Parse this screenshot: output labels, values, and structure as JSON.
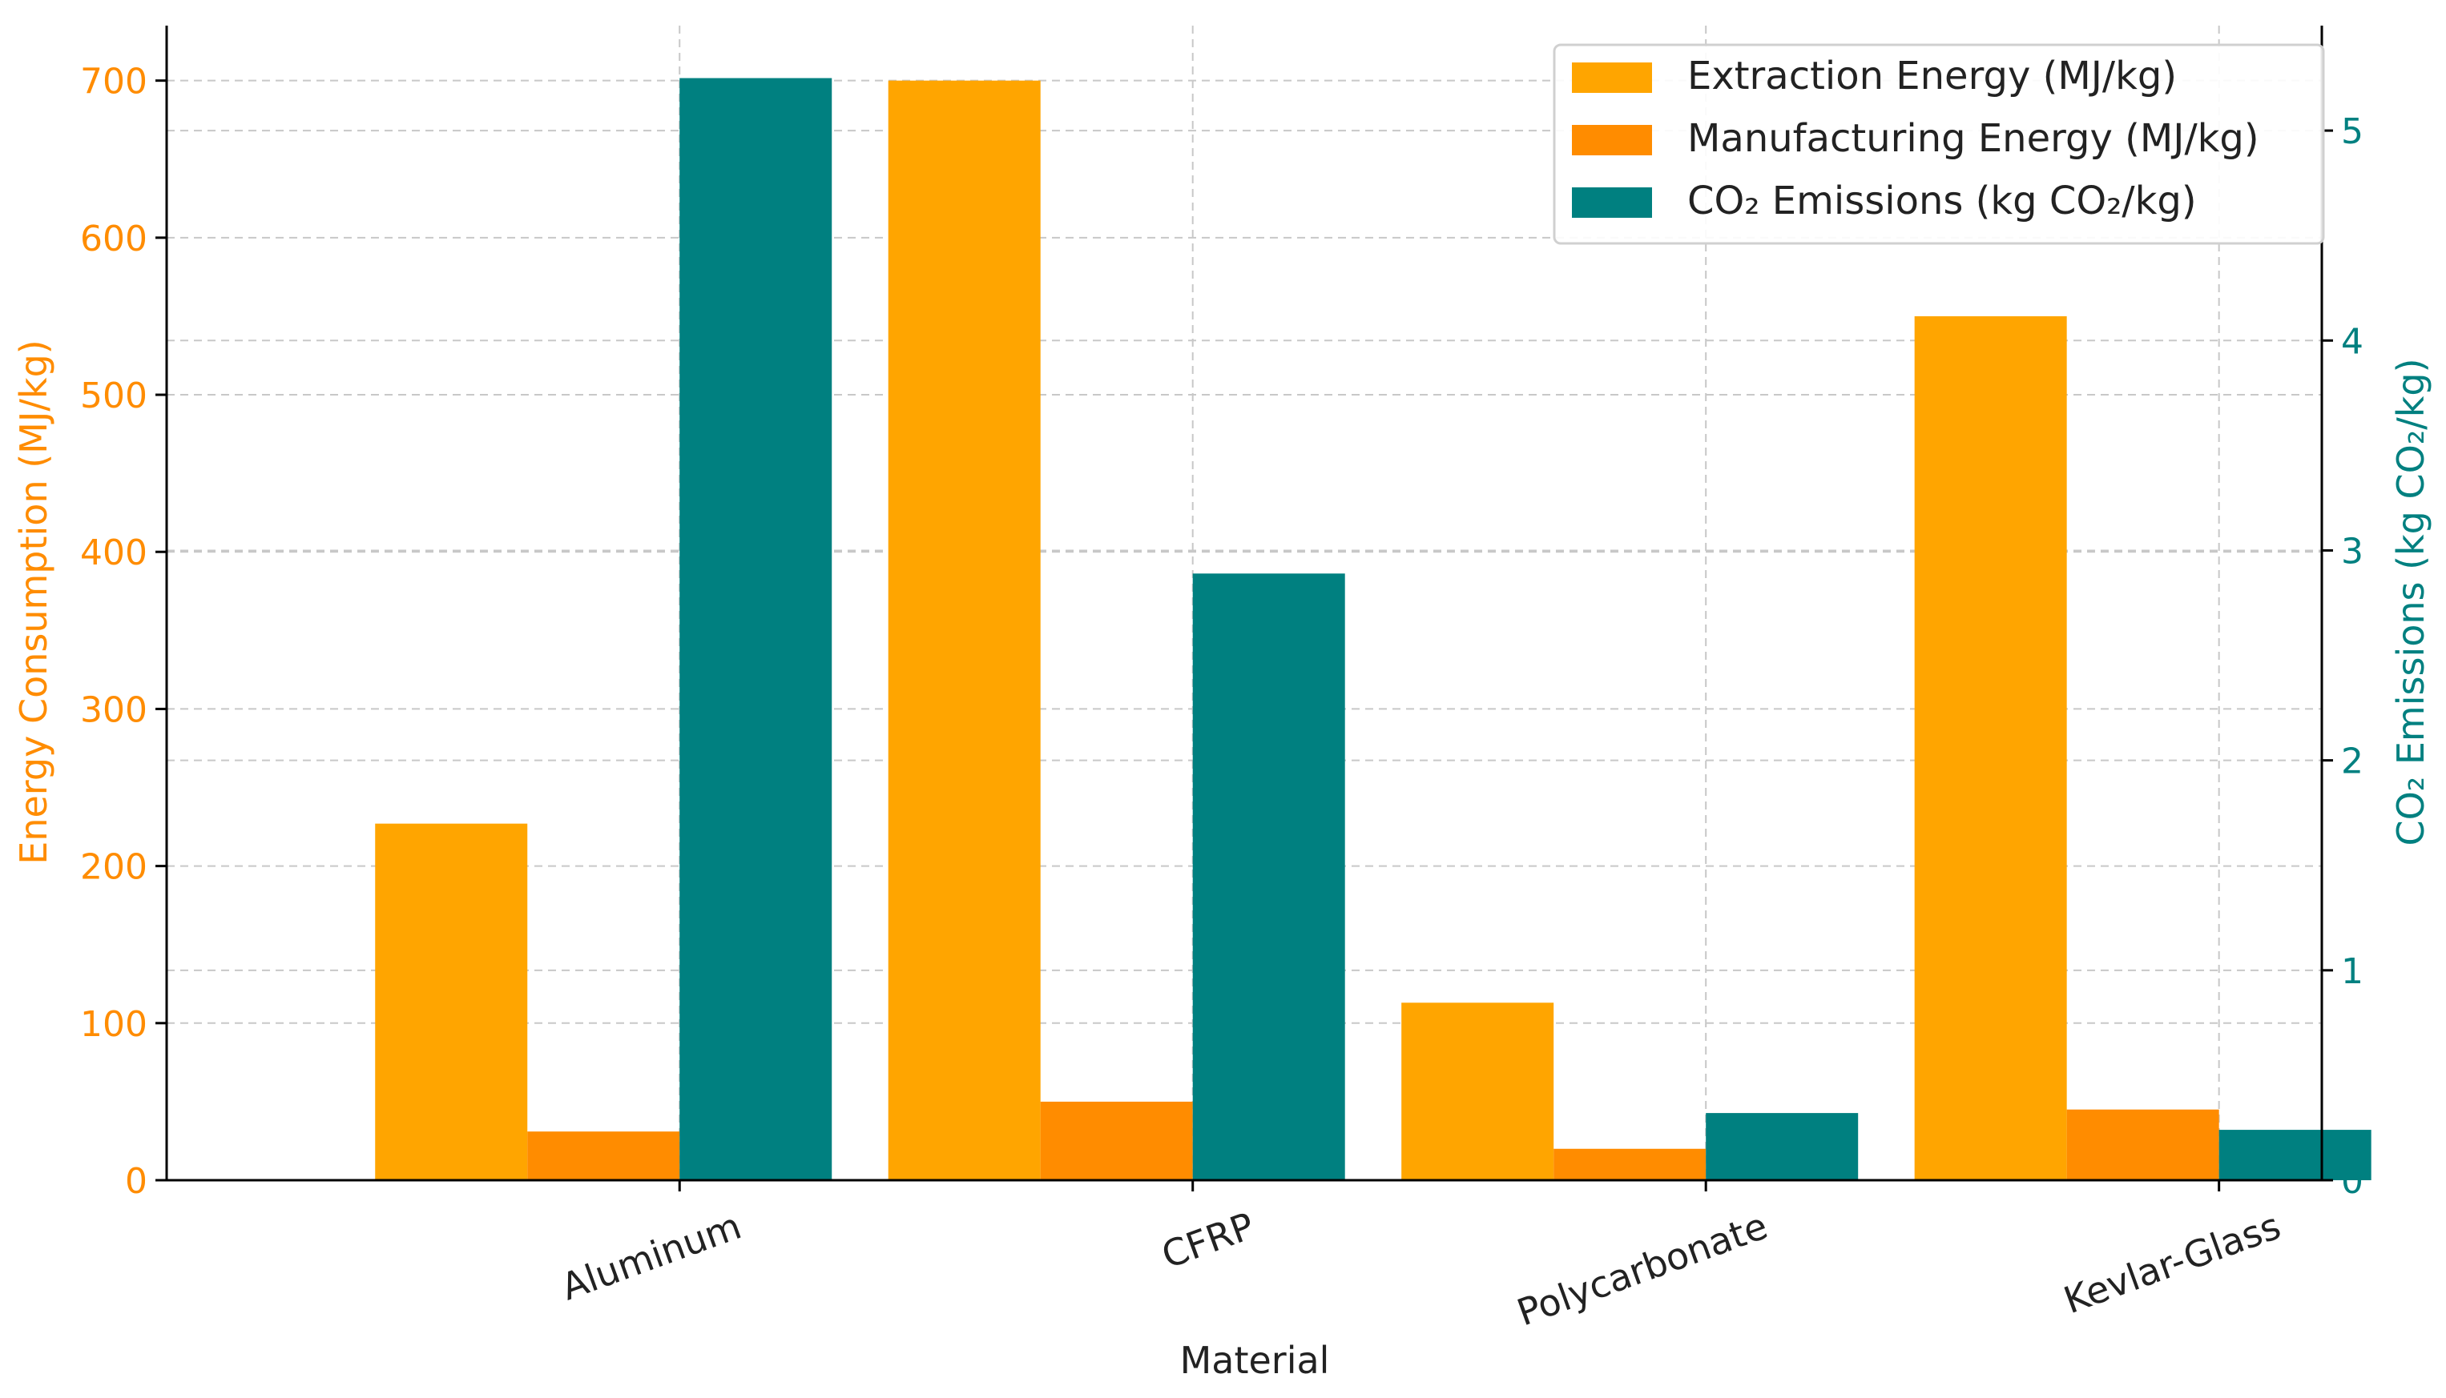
{
  "chart_data": {
    "type": "bar",
    "xlabel": "Material",
    "categories": [
      "Aluminum",
      "CFRP",
      "Polycarbonate",
      "Kevlar-Glass"
    ],
    "y_left": {
      "label": "Energy Consumption (MJ/kg)",
      "range": [
        0,
        735
      ],
      "ticks": [
        0,
        100,
        200,
        300,
        400,
        500,
        600,
        700
      ],
      "color": "#ff8c00"
    },
    "y_right": {
      "label": "CO₂ Emissions (kg CO₂/kg)",
      "range": [
        0,
        5.5
      ],
      "ticks": [
        0,
        1,
        2,
        3,
        4,
        5
      ],
      "color": "#008080"
    },
    "series": [
      {
        "name": "Extraction Energy (MJ/kg)",
        "axis": "left",
        "color": "#ffa500",
        "values": [
          227,
          700,
          113,
          550
        ]
      },
      {
        "name": "Manufacturing Energy (MJ/kg)",
        "axis": "left",
        "color": "#ff8c00",
        "values": [
          31,
          50,
          20,
          45
        ]
      },
      {
        "name": "CO₂ Emissions (kg CO₂/kg)",
        "axis": "right",
        "color": "#008080",
        "values": [
          5.25,
          2.89,
          0.32,
          0.24
        ]
      }
    ],
    "grid": true,
    "legend": "top-right"
  }
}
